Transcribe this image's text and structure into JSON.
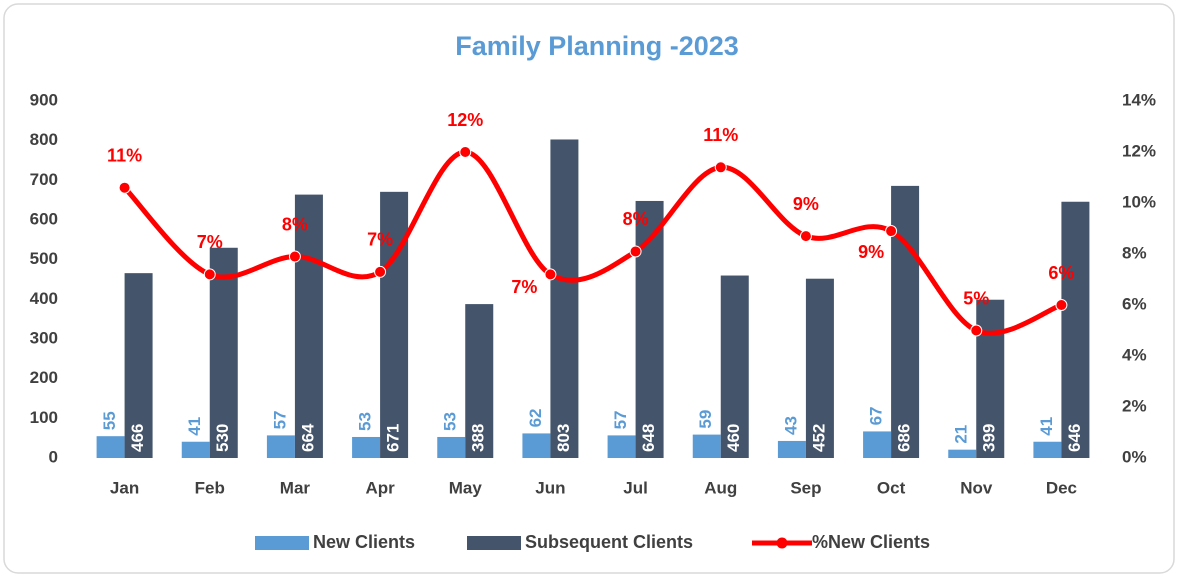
{
  "chart_data": {
    "type": "bar",
    "title": "Family Planning -2023",
    "categories": [
      "Jan",
      "Feb",
      "Mar",
      "Apr",
      "May",
      "Jun",
      "Jul",
      "Aug",
      "Sep",
      "Oct",
      "Nov",
      "Dec"
    ],
    "series": [
      {
        "name": "New Clients",
        "type": "bar",
        "color": "#5b9bd5",
        "values": [
          55,
          41,
          57,
          53,
          53,
          62,
          57,
          59,
          43,
          67,
          21,
          41
        ]
      },
      {
        "name": "Subsequent Clients",
        "type": "bar",
        "color": "#44546a",
        "values": [
          466,
          530,
          664,
          671,
          388,
          803,
          648,
          460,
          452,
          686,
          399,
          646
        ]
      },
      {
        "name": "%New Clients",
        "type": "line",
        "axis": "y2",
        "color": "#ff0000",
        "smooth": true,
        "values": [
          10.6,
          7.2,
          7.9,
          7.3,
          12.0,
          7.2,
          8.1,
          11.4,
          8.7,
          8.9,
          5.0,
          6.0
        ],
        "value_labels": [
          "11%",
          "7%",
          "8%",
          "7%",
          "12%",
          "7%",
          "8%",
          "11%",
          "9%",
          "9%",
          "5%",
          "6%"
        ]
      }
    ],
    "ylim": [
      0,
      900
    ],
    "yticks": [
      0,
      100,
      200,
      300,
      400,
      500,
      600,
      700,
      800,
      900
    ],
    "y2lim": [
      0,
      14
    ],
    "y2ticks": [
      {
        "value": 0,
        "label": "0%"
      },
      {
        "value": 2,
        "label": "2%"
      },
      {
        "value": 4,
        "label": "4%"
      },
      {
        "value": 6,
        "label": "6%"
      },
      {
        "value": 8,
        "label": "8%"
      },
      {
        "value": 10,
        "label": "10%"
      },
      {
        "value": 12,
        "label": "12%"
      },
      {
        "value": 14,
        "label": "14%"
      }
    ],
    "grid": false,
    "legend": "bottom"
  }
}
